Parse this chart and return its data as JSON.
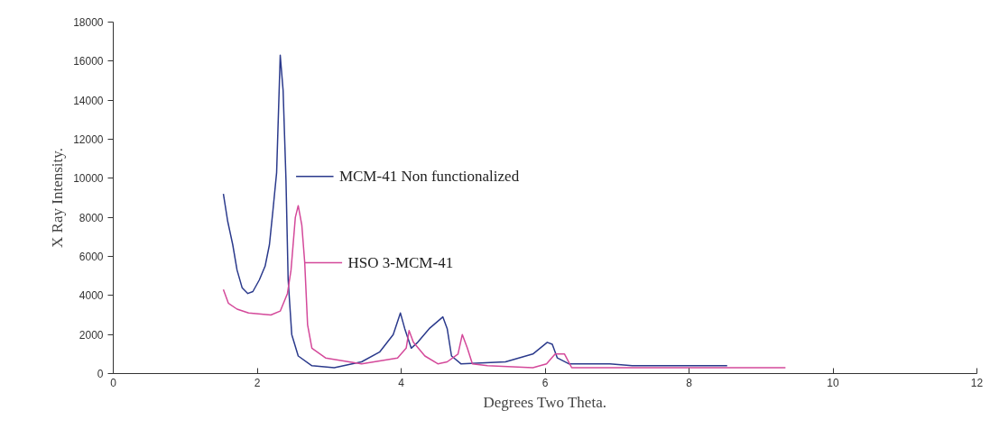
{
  "chart_data": {
    "type": "line",
    "xlabel": "Degrees Two Theta.",
    "ylabel": "X Ray Intensity.",
    "xlim": [
      0,
      12
    ],
    "xticks": [
      0,
      2,
      4,
      6,
      8,
      10,
      12
    ],
    "ylim": [
      0,
      18000
    ],
    "yticks": [
      0,
      2000,
      4000,
      6000,
      8000,
      10000,
      12000,
      14000,
      16000,
      18000
    ],
    "grid": false,
    "legend": "left",
    "marker": "none",
    "line_style": "solid",
    "series": [
      {
        "name": "MCM-41  Non functionalized",
        "color": "#2b3a8c",
        "x": [
          1.53,
          1.59,
          1.66,
          1.72,
          1.79,
          1.87,
          1.94,
          2.03,
          2.11,
          2.17,
          2.22,
          2.27,
          2.32,
          2.36,
          2.4,
          2.43,
          2.48,
          2.57,
          2.76,
          3.07,
          3.45,
          3.7,
          3.89,
          3.99,
          4.05,
          4.14,
          4.23,
          4.39,
          4.58,
          4.64,
          4.7,
          4.83,
          5.45,
          5.83,
          6.03,
          6.1,
          6.17,
          6.33,
          6.77,
          6.9,
          7.21,
          7.96,
          8.53
        ],
        "values": [
          9200,
          7800,
          6600,
          5300,
          4400,
          4100,
          4200,
          4800,
          5500,
          6600,
          8400,
          10300,
          16300,
          14500,
          9900,
          4800,
          2000,
          900,
          400,
          300,
          600,
          1100,
          2000,
          3100,
          2300,
          1300,
          1600,
          2300,
          2900,
          2300,
          900,
          500,
          600,
          1000,
          1600,
          1500,
          800,
          500,
          500,
          500,
          400,
          400,
          400
        ]
      },
      {
        "name": "HSO 3-MCM-41",
        "color": "#d4499a",
        "x": [
          1.53,
          1.6,
          1.72,
          1.88,
          2.19,
          2.32,
          2.42,
          2.47,
          2.53,
          2.57,
          2.62,
          2.66,
          2.7,
          2.76,
          2.95,
          3.45,
          3.95,
          4.07,
          4.11,
          4.17,
          4.33,
          4.51,
          4.64,
          4.79,
          4.85,
          4.92,
          4.99,
          5.2,
          5.83,
          6.02,
          6.14,
          6.27,
          6.37,
          7.21,
          8.46,
          9.34
        ],
        "values": [
          4300,
          3600,
          3300,
          3100,
          3000,
          3200,
          4100,
          5300,
          8000,
          8600,
          7600,
          5700,
          2500,
          1300,
          800,
          500,
          800,
          1300,
          2200,
          1600,
          900,
          500,
          600,
          1000,
          2000,
          1300,
          500,
          400,
          300,
          500,
          1000,
          1000,
          300,
          300,
          300,
          300
        ]
      }
    ]
  }
}
